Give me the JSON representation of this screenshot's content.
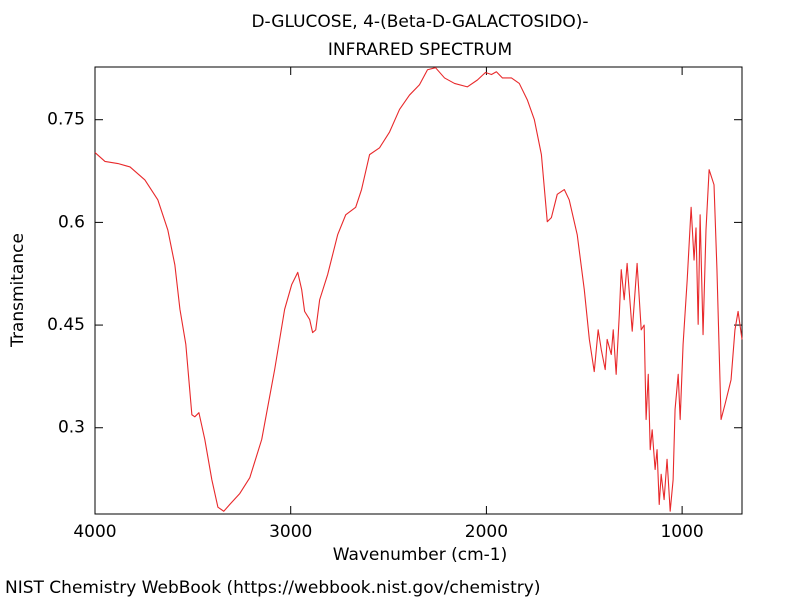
{
  "chart_data": {
    "type": "line",
    "title": "D-GLUCOSE, 4-(Beta-D-GALACTOSIDO)-",
    "subtitle": "INFRARED SPECTRUM",
    "x_label": "Wavenumber (cm-1)",
    "y_label": "Transmitance",
    "footer": "NIST Chemistry WebBook (https://webbook.nist.gov/chemistry)",
    "color": "#e8292b",
    "xlim": [
      4000,
      694
    ],
    "xticks": [
      4000,
      3000,
      2000,
      1000
    ],
    "ylim": [
      0.174,
      0.827
    ],
    "yticks": [
      0.75,
      0.6,
      0.45,
      0.3
    ],
    "x": [
      4000,
      3949,
      3883,
      3821,
      3745,
      3679,
      3628,
      3592,
      3566,
      3536,
      3505,
      3490,
      3469,
      3439,
      3403,
      3372,
      3342,
      3311,
      3260,
      3209,
      3148,
      3082,
      3031,
      2995,
      2964,
      2944,
      2929,
      2903,
      2888,
      2872,
      2852,
      2811,
      2760,
      2719,
      2668,
      2638,
      2597,
      2546,
      2495,
      2444,
      2393,
      2342,
      2301,
      2260,
      2214,
      2163,
      2097,
      2046,
      2005,
      1974,
      1949,
      1918,
      1872,
      1832,
      1791,
      1755,
      1719,
      1689,
      1668,
      1638,
      1602,
      1577,
      1536,
      1500,
      1474,
      1449,
      1429,
      1413,
      1393,
      1383,
      1362,
      1352,
      1337,
      1321,
      1311,
      1296,
      1281,
      1255,
      1230,
      1209,
      1194,
      1184,
      1173,
      1163,
      1153,
      1138,
      1128,
      1117,
      1107,
      1092,
      1077,
      1061,
      1046,
      1036,
      1020,
      1010,
      995,
      974,
      954,
      939,
      929,
      918,
      908,
      893,
      878,
      862,
      837,
      822,
      801,
      781,
      750,
      730,
      714,
      694
    ],
    "values": [
      0.702,
      0.689,
      0.686,
      0.681,
      0.662,
      0.633,
      0.589,
      0.538,
      0.473,
      0.422,
      0.319,
      0.316,
      0.322,
      0.283,
      0.224,
      0.184,
      0.178,
      0.188,
      0.204,
      0.227,
      0.283,
      0.385,
      0.473,
      0.509,
      0.527,
      0.502,
      0.47,
      0.458,
      0.439,
      0.443,
      0.487,
      0.524,
      0.582,
      0.611,
      0.622,
      0.648,
      0.699,
      0.709,
      0.732,
      0.765,
      0.786,
      0.801,
      0.823,
      0.826,
      0.811,
      0.803,
      0.798,
      0.808,
      0.819,
      0.816,
      0.82,
      0.811,
      0.811,
      0.803,
      0.779,
      0.75,
      0.699,
      0.601,
      0.607,
      0.641,
      0.648,
      0.633,
      0.582,
      0.502,
      0.429,
      0.382,
      0.443,
      0.414,
      0.385,
      0.429,
      0.407,
      0.443,
      0.378,
      0.465,
      0.531,
      0.487,
      0.54,
      0.441,
      0.54,
      0.443,
      0.45,
      0.312,
      0.378,
      0.268,
      0.297,
      0.239,
      0.268,
      0.188,
      0.232,
      0.195,
      0.254,
      0.178,
      0.224,
      0.327,
      0.378,
      0.312,
      0.422,
      0.516,
      0.622,
      0.545,
      0.592,
      0.451,
      0.611,
      0.436,
      0.589,
      0.677,
      0.655,
      0.531,
      0.312,
      0.334,
      0.37,
      0.443,
      0.47,
      0.429
    ]
  }
}
